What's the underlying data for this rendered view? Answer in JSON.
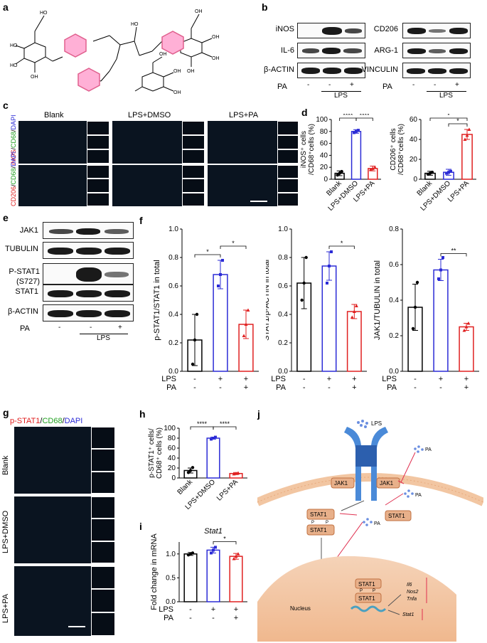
{
  "panels": {
    "a": "a",
    "b": "b",
    "c": "c",
    "d": "d",
    "e": "e",
    "f": "f",
    "g": "g",
    "h": "h",
    "i": "i",
    "j": "j"
  },
  "b": {
    "left_rows": [
      "iNOS",
      "IL-6",
      "β-ACTIN"
    ],
    "right_rows": [
      "CD206",
      "ARG-1",
      "VINCULIN"
    ],
    "pa_label": "PA",
    "pa_signs": [
      "-",
      "-",
      "+"
    ],
    "lps_label": "LPS"
  },
  "c": {
    "col_titles": [
      "Blank",
      "LPS+DMSO",
      "LPS+PA"
    ],
    "row1_stain": {
      "red": "iNOS",
      "sep1": "/",
      "green": "CD68",
      "sep2": "/",
      "blue": "DAPI"
    },
    "row2_stain": {
      "red": "CD206",
      "sep1": "/",
      "green": "CD68",
      "sep2": "/",
      "blue": "DAPI"
    }
  },
  "e": {
    "rows": [
      "JAK1",
      "TUBULIN",
      "P-STAT1",
      "(S727)",
      "STAT1",
      "β-ACTIN"
    ],
    "pa_label": "PA",
    "pa_signs": [
      "-",
      "-",
      "+"
    ],
    "lps_label": "LPS"
  },
  "g": {
    "stain": {
      "red": "p-STAT1",
      "sep1": "/",
      "green": "CD68",
      "sep2": "/",
      "blue": "DAPI"
    },
    "rows": [
      "Blank",
      "LPS+DMSO",
      "LPS+PA"
    ]
  },
  "j": {
    "lps": "LPS",
    "pa1": "PA",
    "pa2": "PA",
    "pa3": "PA",
    "jak1": "JAK1",
    "stat1": "STAT1",
    "p": "P",
    "nucleus": "Nucleus",
    "genes": [
      "Il6",
      "Nos2",
      "Tnfa",
      "Stat1"
    ]
  },
  "chart_data": [
    {
      "id": "d1",
      "type": "bar",
      "ylabel_line1": "iNOS⁺ cells",
      "ylabel_line2": "/CD68⁺cells (%)",
      "ylim": [
        0,
        100
      ],
      "yticks": [
        "0",
        "20",
        "40",
        "60",
        "80",
        "100"
      ],
      "categories": [
        "Blank",
        "LPS+DMSO",
        "LPS+PA"
      ],
      "values": [
        10,
        80,
        18
      ],
      "errors": [
        4,
        3,
        4
      ],
      "points": [
        [
          7,
          10,
          13
        ],
        [
          78,
          80,
          82
        ],
        [
          16,
          18,
          20
        ]
      ],
      "colors": [
        "#000000",
        "#2b2bd6",
        "#e02020"
      ],
      "sig": [
        {
          "pair": [
            0,
            1
          ],
          "label": "****"
        },
        {
          "pair": [
            1,
            2
          ],
          "label": "****"
        }
      ]
    },
    {
      "id": "d2",
      "type": "bar",
      "ylabel_line1": "CD206⁺ cells",
      "ylabel_line2": "/CD68⁺cells (%)",
      "ylim": [
        0,
        60
      ],
      "yticks": [
        "0",
        "20",
        "40",
        "60"
      ],
      "categories": [
        "Blank",
        "LPS+DMSO",
        "LPS+PA"
      ],
      "values": [
        6,
        7,
        45
      ],
      "errors": [
        2,
        3,
        5
      ],
      "points": [
        [
          5,
          6,
          7
        ],
        [
          6,
          7,
          8
        ],
        [
          40,
          44,
          50
        ]
      ],
      "colors": [
        "#000000",
        "#2b2bd6",
        "#e02020"
      ],
      "sig": [
        {
          "pair": [
            1,
            2
          ],
          "label": "*"
        },
        {
          "pair": [
            0,
            2
          ],
          "label": "*"
        }
      ]
    },
    {
      "id": "f1",
      "type": "bar",
      "ylabel": "p-STAT1/STAT1 in total",
      "ylim": [
        0,
        1.0
      ],
      "yticks": [
        "0.0",
        "0.2",
        "0.4",
        "0.6",
        "0.8",
        "1.0"
      ],
      "values": [
        0.22,
        0.68,
        0.33
      ],
      "errors": [
        0.18,
        0.1,
        0.1
      ],
      "points": [
        [
          0.05,
          0.22,
          0.4
        ],
        [
          0.6,
          0.68,
          0.78
        ],
        [
          0.25,
          0.33,
          0.43
        ]
      ],
      "colors": [
        "#000000",
        "#2b2bd6",
        "#e02020"
      ],
      "lps_row": [
        "-",
        "+",
        "+"
      ],
      "pa_row": [
        "-",
        "-",
        "+"
      ],
      "row_labels": [
        "LPS",
        "PA"
      ],
      "sig": [
        {
          "pair": [
            0,
            1
          ],
          "label": "*"
        },
        {
          "pair": [
            1,
            2
          ],
          "label": "*"
        }
      ]
    },
    {
      "id": "f2",
      "type": "bar",
      "ylabel": "STAT1/β-ACTIN in total",
      "ylim": [
        0,
        1.0
      ],
      "yticks": [
        "0.0",
        "0.2",
        "0.4",
        "0.6",
        "0.8",
        "1.0"
      ],
      "values": [
        0.62,
        0.74,
        0.42
      ],
      "errors": [
        0.18,
        0.1,
        0.05
      ],
      "points": [
        [
          0.5,
          0.62,
          0.8
        ],
        [
          0.62,
          0.74,
          0.84
        ],
        [
          0.38,
          0.42,
          0.46
        ]
      ],
      "colors": [
        "#000000",
        "#2b2bd6",
        "#e02020"
      ],
      "lps_row": [
        "-",
        "+",
        "+"
      ],
      "pa_row": [
        "-",
        "-",
        "+"
      ],
      "row_labels": [
        "LPS",
        "PA"
      ],
      "sig": [
        {
          "pair": [
            1,
            2
          ],
          "label": "*"
        }
      ]
    },
    {
      "id": "f3",
      "type": "bar",
      "ylabel": "JAK1/TUBULIN in total",
      "ylim": [
        0,
        0.8
      ],
      "yticks": [
        "0.0",
        "0.2",
        "0.4",
        "0.6",
        "0.8"
      ],
      "values": [
        0.36,
        0.57,
        0.25
      ],
      "errors": [
        0.13,
        0.06,
        0.02
      ],
      "points": [
        [
          0.24,
          0.36,
          0.5
        ],
        [
          0.52,
          0.57,
          0.64
        ],
        [
          0.23,
          0.25,
          0.27
        ]
      ],
      "colors": [
        "#000000",
        "#2b2bd6",
        "#e02020"
      ],
      "lps_row": [
        "-",
        "+",
        "+"
      ],
      "pa_row": [
        "-",
        "-",
        "+"
      ],
      "row_labels": [
        "LPS",
        "PA"
      ],
      "sig": [
        {
          "pair": [
            1,
            2
          ],
          "label": "**"
        }
      ]
    },
    {
      "id": "h",
      "type": "bar",
      "ylabel_line1": "p-STAT1⁺ cells/",
      "ylabel_line2": "CD68⁺ cells (%)",
      "ylim": [
        0,
        100
      ],
      "yticks": [
        "0",
        "20",
        "40",
        "60",
        "80",
        "100"
      ],
      "categories": [
        "Blank",
        "LPS+DMSO",
        "LPS+PA"
      ],
      "values": [
        15,
        80,
        9
      ],
      "errors": [
        5,
        2,
        2
      ],
      "points": [
        [
          11,
          15,
          21
        ],
        [
          78,
          80,
          82
        ],
        [
          8,
          9,
          10
        ]
      ],
      "colors": [
        "#000000",
        "#2b2bd6",
        "#e02020"
      ],
      "sig": [
        {
          "pair": [
            0,
            1
          ],
          "label": "****"
        },
        {
          "pair": [
            1,
            2
          ],
          "label": "****"
        }
      ]
    },
    {
      "id": "i",
      "type": "bar",
      "title": "Stat1",
      "ylabel": "Fold change in mRNA",
      "ylim": [
        0.0,
        1.25
      ],
      "yticks": [
        "0.0",
        "0.5",
        "1.0"
      ],
      "values": [
        1.0,
        1.08,
        0.95
      ],
      "errors": [
        0.03,
        0.06,
        0.06
      ],
      "points": [
        [
          0.98,
          1.0,
          1.02
        ],
        [
          1.02,
          1.08,
          1.14
        ],
        [
          0.9,
          0.95,
          1.0
        ]
      ],
      "colors": [
        "#000000",
        "#2b2bd6",
        "#e02020"
      ],
      "lps_row": [
        "-",
        "+",
        "+"
      ],
      "pa_row": [
        "-",
        "-",
        "+"
      ],
      "row_labels": [
        "LPS",
        "PA"
      ],
      "sig": [
        {
          "pair": [
            1,
            2
          ],
          "label": "*"
        }
      ]
    }
  ]
}
